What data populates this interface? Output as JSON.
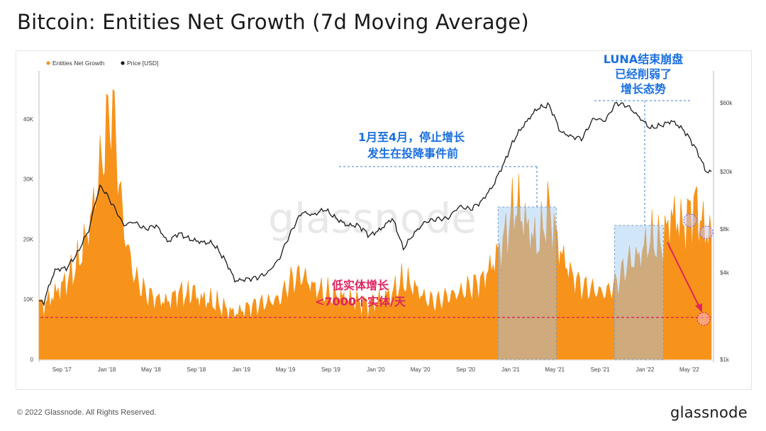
{
  "title": "Bitcoin: Entities Net Growth (7d Moving Average)",
  "footer": {
    "copyright": "© 2022 Glassnode. All Rights Reserved.",
    "logo": "glassnode"
  },
  "watermark": "glassnode",
  "colors": {
    "growth": "#f7931a",
    "price": "#1a1a1a",
    "highlight": "#9cc8f5",
    "dashed_line": "#e0245e",
    "annotation_blue": "#1a6fe0",
    "annotation_pink": "#e0245e",
    "circle_purple": "#6e6ee6"
  },
  "annotations": {
    "jan_apr": [
      "1月至4月，停止增长",
      "发生在投降事件前"
    ],
    "luna": [
      "LUNA结束崩盘",
      "已经削弱了",
      "增长态势"
    ],
    "low_growth": [
      "低实体增长",
      "<7000个实体/天"
    ]
  },
  "chart_data": {
    "type": "area",
    "legend": [
      "Entities Net Growth",
      "Price [USD]"
    ],
    "legend_position": "top-left",
    "x_ticks": [
      "Sep '17",
      "Jan '18",
      "May '18",
      "Sep '18",
      "Jan '19",
      "May '19",
      "Sep '19",
      "Jan '20",
      "May '20",
      "Sep '20",
      "Jan '21",
      "May '21",
      "Sep '21",
      "Jan '22",
      "May '22"
    ],
    "y_left_ticks": [
      "0",
      "10K",
      "20K",
      "30K",
      "40K"
    ],
    "y_left_range": [
      0,
      48000
    ],
    "y_right_ticks": [
      "$1k",
      "$4k",
      "$8k",
      "$20k",
      "$60k"
    ],
    "y_right_scale": "log",
    "threshold": 7000,
    "series": [
      {
        "name": "Entities Net Growth",
        "x": [
          "2017-07",
          "2017-08",
          "2017-09",
          "2017-10",
          "2017-11",
          "2017-12",
          "2018-01",
          "2018-02",
          "2018-03",
          "2018-04",
          "2018-05",
          "2018-06",
          "2018-07",
          "2018-08",
          "2018-09",
          "2018-10",
          "2018-11",
          "2018-12",
          "2019-01",
          "2019-02",
          "2019-03",
          "2019-04",
          "2019-05",
          "2019-06",
          "2019-07",
          "2019-08",
          "2019-09",
          "2019-10",
          "2019-11",
          "2019-12",
          "2020-01",
          "2020-02",
          "2020-03",
          "2020-04",
          "2020-05",
          "2020-06",
          "2020-07",
          "2020-08",
          "2020-09",
          "2020-10",
          "2020-11",
          "2020-12",
          "2021-01",
          "2021-02",
          "2021-03",
          "2021-04",
          "2021-05",
          "2021-06",
          "2021-07",
          "2021-08",
          "2021-09",
          "2021-10",
          "2021-11",
          "2021-12",
          "2022-01",
          "2022-02",
          "2022-03",
          "2022-04",
          "2022-05",
          "2022-06"
        ],
        "values": [
          9000,
          11000,
          13000,
          16000,
          22000,
          32000,
          43000,
          22000,
          14000,
          11000,
          10000,
          9500,
          11000,
          10500,
          10000,
          9500,
          8500,
          7500,
          8500,
          9000,
          9500,
          10000,
          13000,
          14000,
          12000,
          11000,
          10500,
          10000,
          9500,
          9000,
          10000,
          11000,
          13000,
          12000,
          10000,
          9500,
          10500,
          11000,
          12000,
          13000,
          16000,
          20000,
          26000,
          22000,
          19000,
          25000,
          18000,
          14000,
          12000,
          11500,
          11000,
          12500,
          16000,
          17000,
          20000,
          19000,
          24000,
          22000,
          26000,
          21000
        ]
      },
      {
        "name": "Price [USD]",
        "x": [
          "2017-07",
          "2017-08",
          "2017-09",
          "2017-10",
          "2017-11",
          "2017-12",
          "2018-01",
          "2018-02",
          "2018-03",
          "2018-04",
          "2018-05",
          "2018-06",
          "2018-07",
          "2018-08",
          "2018-09",
          "2018-10",
          "2018-11",
          "2018-12",
          "2019-01",
          "2019-02",
          "2019-03",
          "2019-04",
          "2019-05",
          "2019-06",
          "2019-07",
          "2019-08",
          "2019-09",
          "2019-10",
          "2019-11",
          "2019-12",
          "2020-01",
          "2020-02",
          "2020-03",
          "2020-04",
          "2020-05",
          "2020-06",
          "2020-07",
          "2020-08",
          "2020-09",
          "2020-10",
          "2020-11",
          "2020-12",
          "2021-01",
          "2021-02",
          "2021-03",
          "2021-04",
          "2021-05",
          "2021-06",
          "2021-07",
          "2021-08",
          "2021-09",
          "2021-10",
          "2021-11",
          "2021-12",
          "2022-01",
          "2022-02",
          "2022-03",
          "2022-04",
          "2022-05",
          "2022-06"
        ],
        "values": [
          2500,
          4200,
          4300,
          5500,
          8000,
          16000,
          12000,
          8500,
          9000,
          8000,
          8500,
          6500,
          7500,
          6800,
          6500,
          6400,
          5000,
          3500,
          3600,
          3700,
          4000,
          5000,
          7500,
          10500,
          10000,
          11000,
          9500,
          8500,
          8500,
          7200,
          8000,
          9500,
          5800,
          7500,
          9000,
          9400,
          9500,
          11500,
          11000,
          12500,
          16000,
          23000,
          35000,
          45000,
          55000,
          58000,
          38000,
          35000,
          34000,
          47000,
          45000,
          60000,
          57000,
          48000,
          40000,
          42000,
          45000,
          39000,
          30000,
          20000
        ]
      }
    ]
  }
}
